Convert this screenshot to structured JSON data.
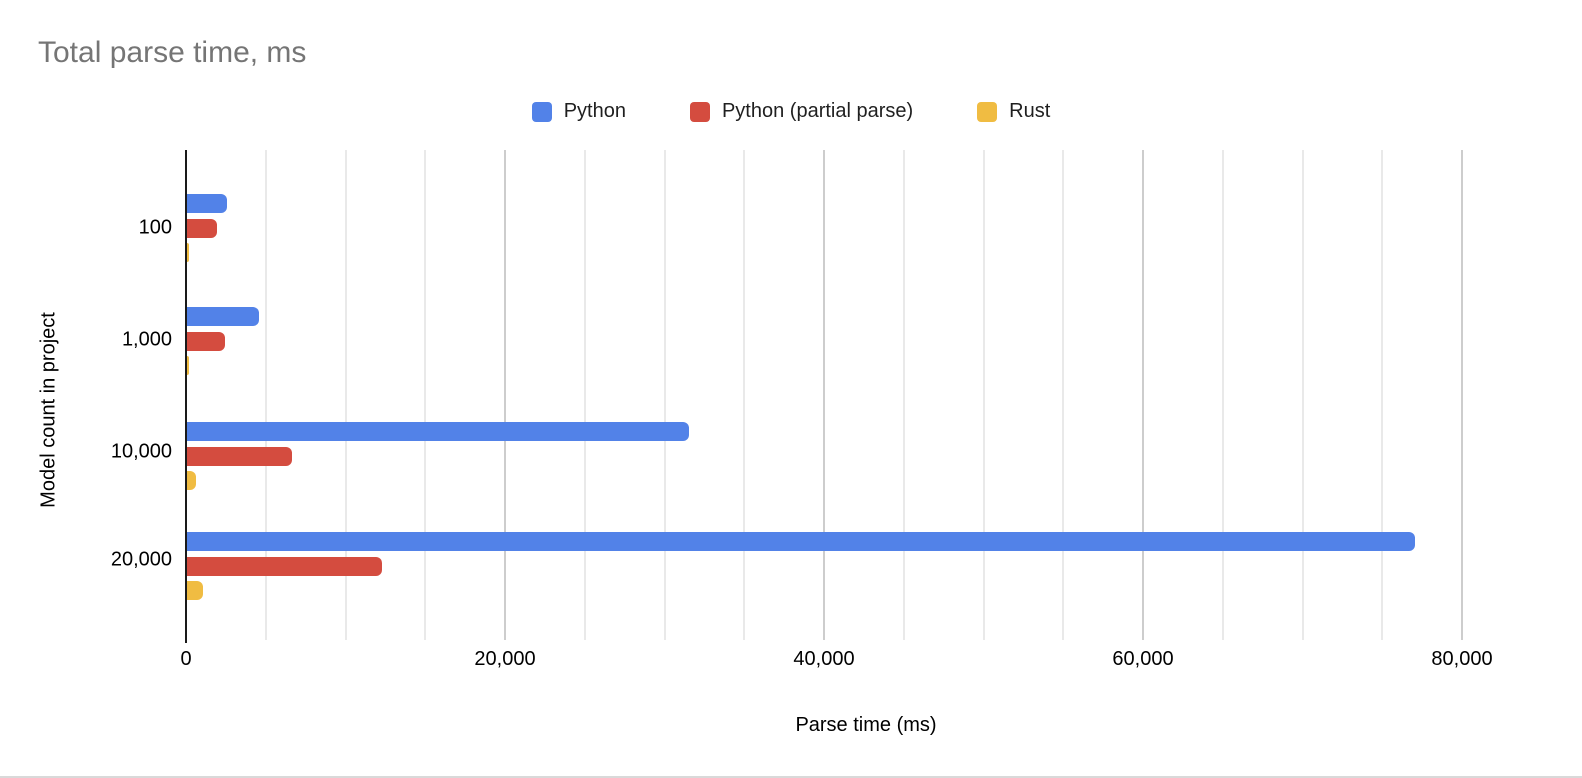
{
  "chart_data": {
    "type": "bar",
    "orientation": "horizontal",
    "title": "Total parse time, ms",
    "xlabel": "Parse time (ms)",
    "ylabel": "Model count in project",
    "categories": [
      "100",
      "1,000",
      "10,000",
      "20,000"
    ],
    "series": [
      {
        "name": "Python",
        "color": "#5282e8",
        "values": [
          2500,
          4500,
          31500,
          77000
        ]
      },
      {
        "name": "Python (partial parse)",
        "color": "#d44c3f",
        "values": [
          1900,
          2400,
          6600,
          12200
        ]
      },
      {
        "name": "Rust",
        "color": "#f0bc42",
        "values": [
          60,
          100,
          550,
          1030
        ]
      }
    ],
    "xlim": [
      0,
      80000
    ],
    "x_ticks": [
      {
        "value": 0,
        "label": "0"
      },
      {
        "value": 20000,
        "label": "20,000"
      },
      {
        "value": 40000,
        "label": "40,000"
      },
      {
        "value": 60000,
        "label": "60,000"
      },
      {
        "value": 80000,
        "label": "80,000"
      }
    ],
    "minor_grid_step": 5000,
    "major_grid_step": 20000,
    "grid": true,
    "legend_position": "top"
  },
  "colors": {
    "title_text": "#757575",
    "axis_text": "#000000",
    "legend_text": "#1f1f1f",
    "axis_line": "#1a1a1a",
    "gridline_minor": "#e9e9e9",
    "gridline_major": "#cdcdcd",
    "window_border": "#d9d9d9",
    "background": "#ffffff"
  }
}
